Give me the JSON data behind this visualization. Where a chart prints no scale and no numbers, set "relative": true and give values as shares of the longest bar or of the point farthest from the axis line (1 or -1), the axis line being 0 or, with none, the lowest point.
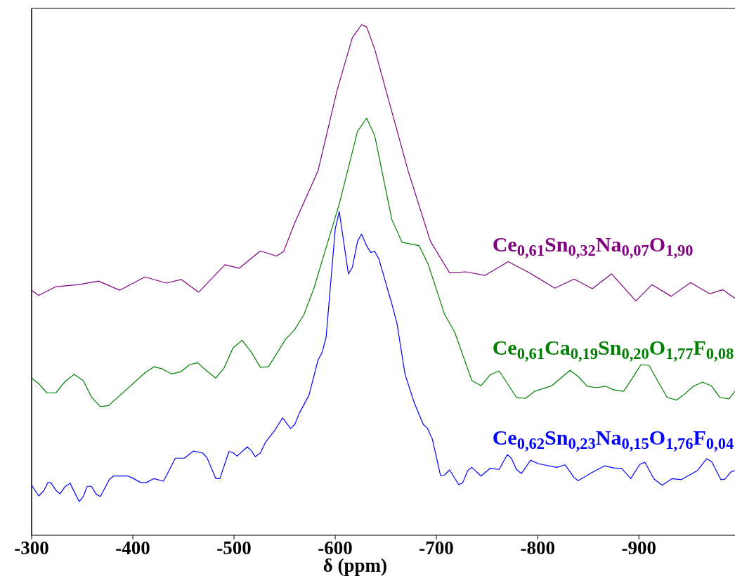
{
  "chart_data": {
    "type": "line",
    "relative": true,
    "xlabel": "δ (ppm)",
    "xlim": [
      -300,
      -995
    ],
    "xticks": [
      -300,
      -400,
      -500,
      -600,
      -700,
      -800,
      -900
    ],
    "series": [
      {
        "name": "Ce$_{0,61}$Sn$_{0,32}$Na$_{0,07}$O$_{1,90}$",
        "color": "#800080",
        "x": [
          -300,
          -307,
          -324,
          -347,
          -366,
          -387,
          -412,
          -433,
          -448,
          -465,
          -491,
          -505,
          -526,
          -542,
          -549,
          -560,
          -583,
          -602,
          -617,
          -626,
          -631,
          -639,
          -653,
          -672,
          -694,
          -713,
          -729,
          -748,
          -771,
          -792,
          -817,
          -836,
          -854,
          -873,
          -897,
          -913,
          -932,
          -951,
          -970,
          -983,
          -995
        ],
        "values": [
          0.48,
          0.47,
          0.487,
          0.491,
          0.498,
          0.48,
          0.506,
          0.494,
          0.501,
          0.476,
          0.53,
          0.523,
          0.557,
          0.547,
          0.556,
          0.612,
          0.714,
          0.873,
          0.975,
          1.0,
          0.996,
          0.952,
          0.851,
          0.714,
          0.576,
          0.514,
          0.516,
          0.509,
          0.536,
          0.514,
          0.484,
          0.502,
          0.483,
          0.512,
          0.459,
          0.491,
          0.468,
          0.495,
          0.473,
          0.481,
          0.464
        ]
      },
      {
        "name": "Ce$_{0,61}$Ca$_{0,19}$Sn$_{0,20}$O$_{1,77}$F$_{0,08}$",
        "color": "#008000",
        "x": [
          -300,
          -307,
          -315,
          -324,
          -333,
          -342,
          -351,
          -359,
          -368,
          -376,
          -413,
          -421,
          -429,
          -438,
          -447,
          -456,
          -464,
          -473,
          -482,
          -490,
          -499,
          -508,
          -517,
          -526,
          -534,
          -551,
          -560,
          -569,
          -579,
          -590,
          -604,
          -622,
          -631,
          -639,
          -656,
          -666,
          -683,
          -692,
          -708,
          -718,
          -735,
          -744,
          -753,
          -762,
          -779,
          -788,
          -797,
          -814,
          -832,
          -840,
          -849,
          -858,
          -867,
          -875,
          -885,
          -894,
          -902,
          -910,
          -919,
          -928,
          -937,
          -945,
          -954,
          -963,
          -972,
          -980,
          -989,
          -995
        ],
        "values": [
          0.308,
          0.297,
          0.279,
          0.279,
          0.301,
          0.315,
          0.303,
          0.271,
          0.252,
          0.254,
          0.32,
          0.33,
          0.326,
          0.316,
          0.32,
          0.334,
          0.338,
          0.322,
          0.308,
          0.327,
          0.367,
          0.382,
          0.359,
          0.329,
          0.33,
          0.384,
          0.403,
          0.432,
          0.484,
          0.557,
          0.649,
          0.791,
          0.817,
          0.783,
          0.618,
          0.574,
          0.567,
          0.53,
          0.433,
          0.398,
          0.303,
          0.293,
          0.314,
          0.322,
          0.27,
          0.268,
          0.282,
          0.293,
          0.323,
          0.311,
          0.292,
          0.289,
          0.292,
          0.285,
          0.282,
          0.309,
          0.334,
          0.333,
          0.301,
          0.27,
          0.265,
          0.276,
          0.292,
          0.3,
          0.292,
          0.27,
          0.267,
          0.282
        ]
      },
      {
        "name": "Ce$_{0,62}$Sn$_{0,23}$Na$_{0,15}$O$_{1,76}$F$_{0,04}$",
        "color": "#0000ff",
        "x": [
          -300,
          -307,
          -312,
          -316,
          -319,
          -324,
          -328,
          -333,
          -338,
          -347,
          -351,
          -355,
          -359,
          -364,
          -368,
          -377,
          -381,
          -395,
          -399,
          -408,
          -413,
          -421,
          -430,
          -433,
          -442,
          -451,
          -460,
          -469,
          -473,
          -482,
          -486,
          -495,
          -499,
          -503,
          -513,
          -517,
          -521,
          -526,
          -531,
          -539,
          -548,
          -556,
          -560,
          -565,
          -574,
          -583,
          -587,
          -591,
          -600,
          -604,
          -613,
          -617,
          -622,
          -626,
          -631,
          -635,
          -639,
          -643,
          -649,
          -653,
          -656,
          -661,
          -669,
          -678,
          -687,
          -691,
          -696,
          -704,
          -708,
          -713,
          -722,
          -726,
          -731,
          -735,
          -744,
          -753,
          -762,
          -770,
          -774,
          -779,
          -784,
          -793,
          -801,
          -819,
          -827,
          -836,
          -840,
          -853,
          -866,
          -875,
          -883,
          -892,
          -901,
          -906,
          -915,
          -923,
          -933,
          -942,
          -958,
          -967,
          -972,
          -981,
          -985,
          -991,
          -995
        ],
        "values": [
          0.098,
          0.077,
          0.087,
          0.103,
          0.103,
          0.088,
          0.081,
          0.095,
          0.102,
          0.066,
          0.076,
          0.096,
          0.096,
          0.08,
          0.076,
          0.11,
          0.116,
          0.116,
          0.113,
          0.103,
          0.103,
          0.111,
          0.106,
          0.116,
          0.151,
          0.151,
          0.165,
          0.161,
          0.153,
          0.111,
          0.111,
          0.164,
          0.162,
          0.155,
          0.173,
          0.166,
          0.154,
          0.161,
          0.182,
          0.202,
          0.23,
          0.209,
          0.217,
          0.241,
          0.274,
          0.343,
          0.358,
          0.388,
          0.6,
          0.634,
          0.512,
          0.525,
          0.576,
          0.59,
          0.567,
          0.554,
          0.556,
          0.542,
          0.501,
          0.473,
          0.453,
          0.415,
          0.315,
          0.26,
          0.217,
          0.21,
          0.188,
          0.117,
          0.118,
          0.128,
          0.099,
          0.103,
          0.127,
          0.133,
          0.116,
          0.131,
          0.129,
          0.158,
          0.151,
          0.129,
          0.121,
          0.147,
          0.14,
          0.133,
          0.138,
          0.113,
          0.107,
          0.122,
          0.136,
          0.132,
          0.131,
          0.111,
          0.139,
          0.143,
          0.11,
          0.098,
          0.111,
          0.109,
          0.127,
          0.15,
          0.144,
          0.109,
          0.11,
          0.124,
          0.127
        ]
      }
    ]
  }
}
